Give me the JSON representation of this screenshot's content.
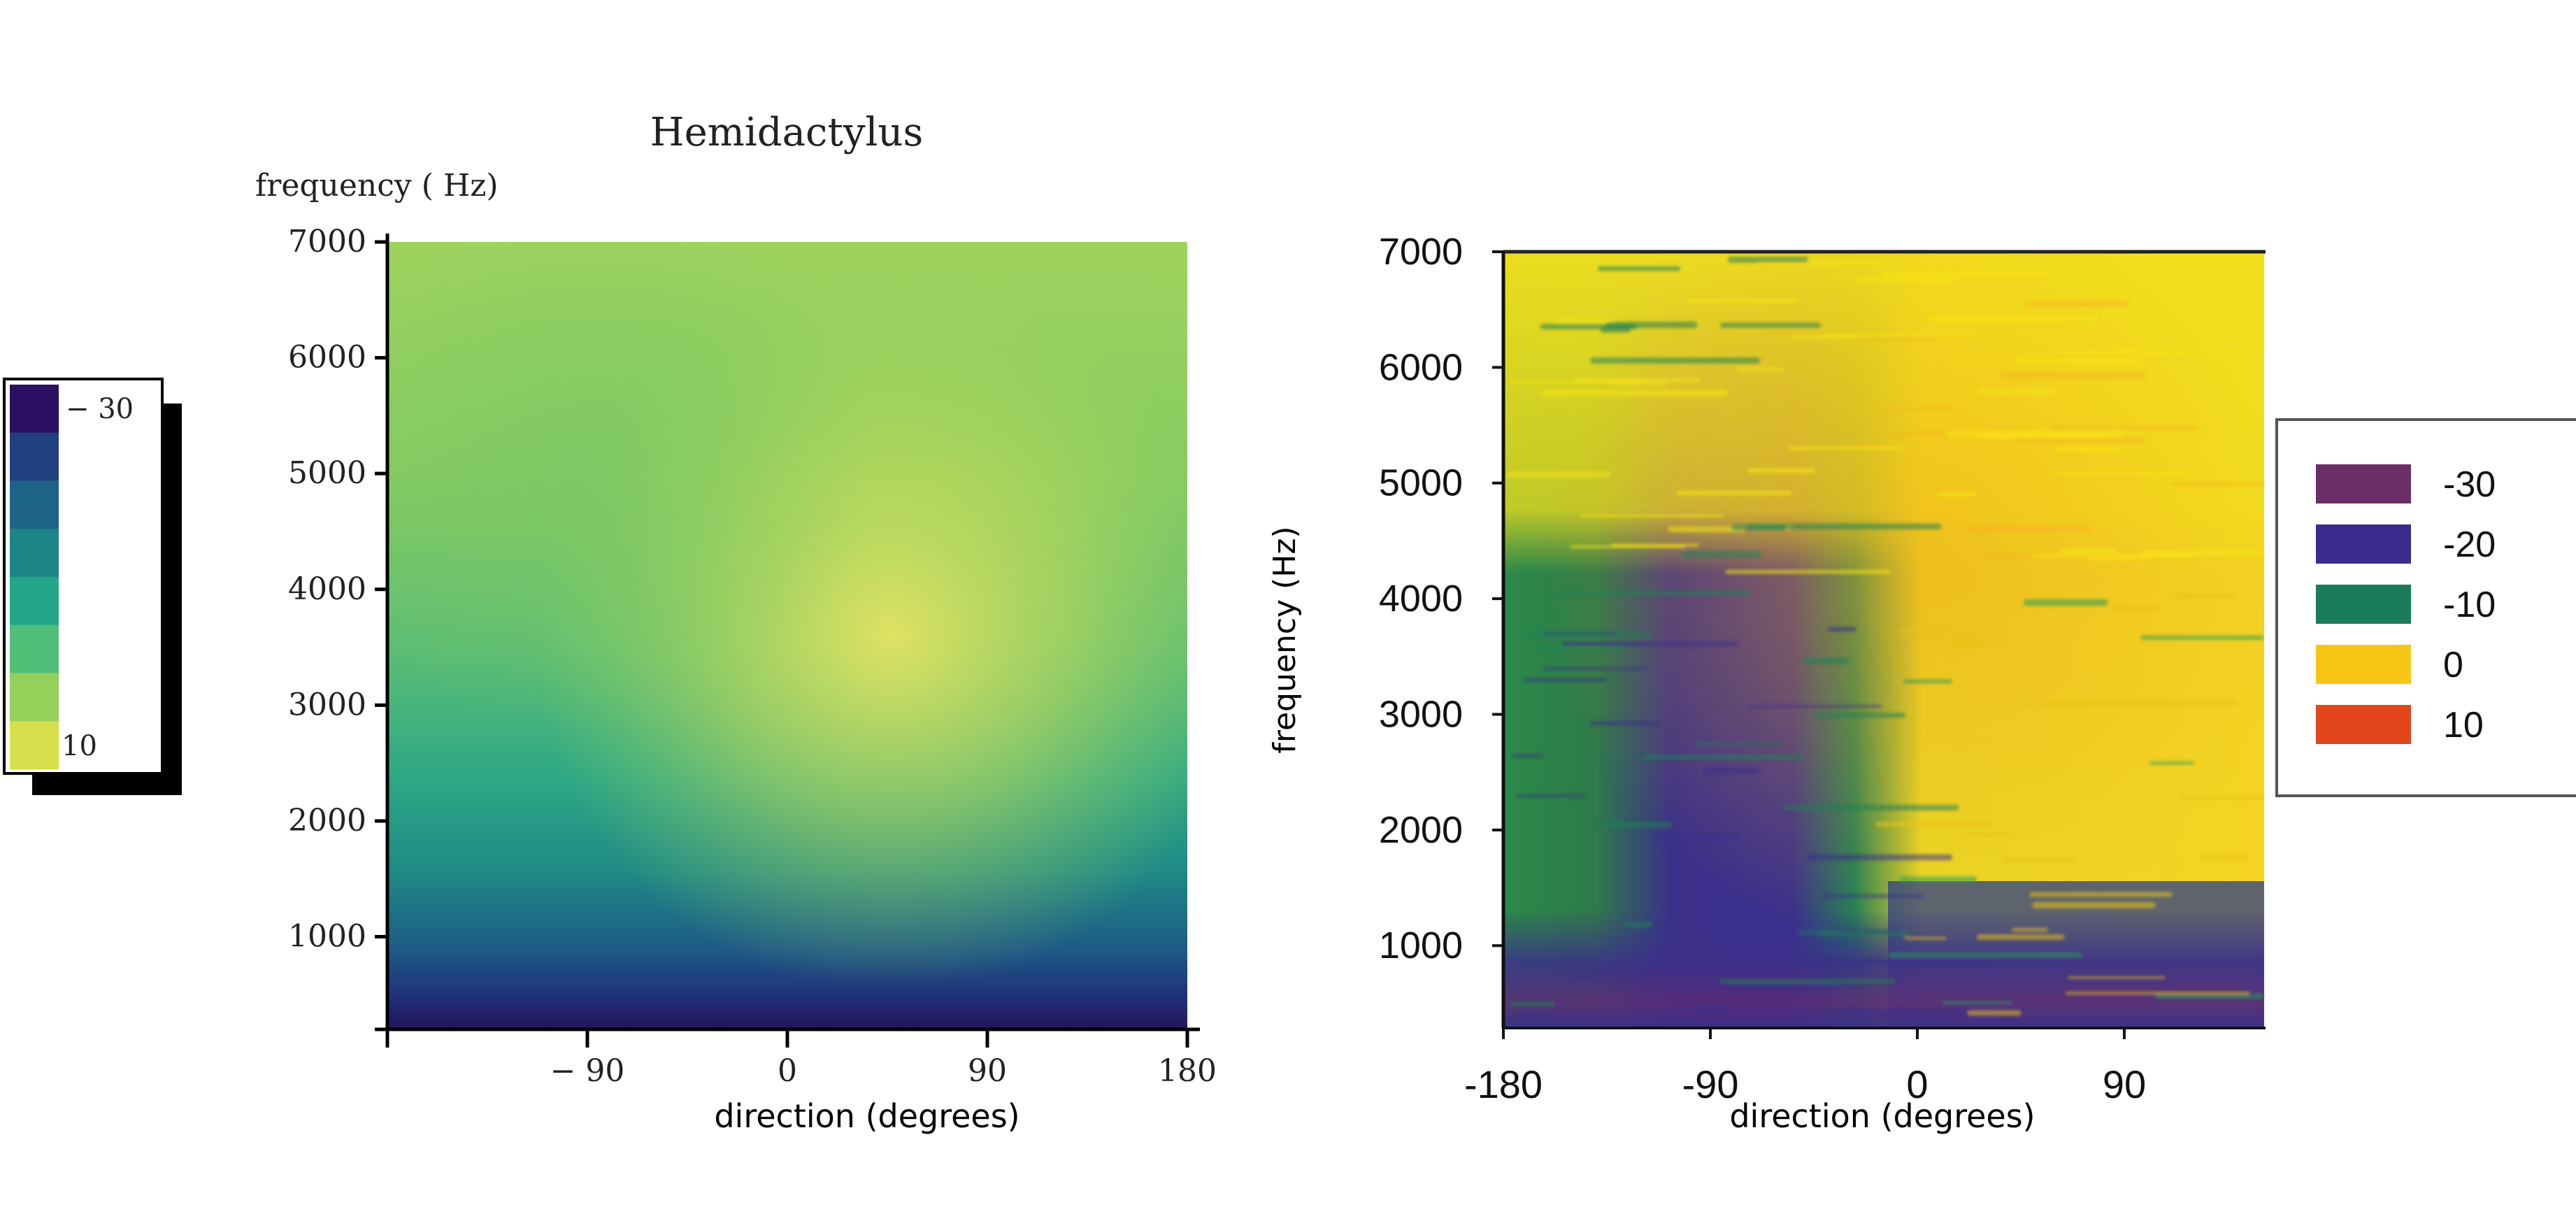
{
  "colors": {
    "viridis": [
      "#2c0f62",
      "#203f80",
      "#1d6388",
      "#1c8686",
      "#22a78a",
      "#51bf78",
      "#95d05b",
      "#d6e04c",
      "#e8e66a"
    ],
    "axis": "#000000",
    "legend_swatches": [
      "#6b2e68",
      "#3a2c8c",
      "#1a7c58",
      "#f7c617",
      "#e2451b"
    ]
  },
  "chart_data": [
    {
      "type": "heatmap",
      "title": "Hemidactylus",
      "ylabel": "frequency ( Hz)",
      "xlabel": "direction (degrees)",
      "x_ticks": [
        "− 90",
        "0",
        "90",
        "180"
      ],
      "x_tick_values": [
        -90,
        0,
        90,
        180
      ],
      "y_ticks": [
        "1000",
        "2000",
        "3000",
        "4000",
        "5000",
        "6000",
        "7000"
      ],
      "y_tick_values": [
        1000,
        2000,
        3000,
        4000,
        5000,
        6000,
        7000
      ],
      "xlim": [
        -180,
        180
      ],
      "ylim": [
        200,
        7000
      ],
      "colorbar": {
        "labels": [
          "− 30",
          "10"
        ],
        "range": [
          -30,
          10
        ],
        "levels": 8,
        "placement": "left"
      },
      "pattern": "low values (dark) below ~500 Hz, rising to high values above ~2500 Hz with a maximum near 0 to 90 degrees, 3500-5000 Hz"
    },
    {
      "type": "heatmap",
      "ylabel": "frequency (Hz)",
      "xlabel": "direction (degrees)",
      "x_ticks": [
        "-180",
        "-90",
        "0",
        "90"
      ],
      "x_tick_values": [
        -180,
        -90,
        0,
        90
      ],
      "y_ticks": [
        "1000",
        "2000",
        "3000",
        "4000",
        "5000",
        "6000",
        "7000"
      ],
      "y_tick_values": [
        1000,
        2000,
        3000,
        4000,
        5000,
        6000,
        7000
      ],
      "xlim": [
        -180,
        150
      ],
      "ylim": [
        300,
        7000
      ],
      "legend": {
        "placement": "right",
        "entries": [
          "-30",
          "-20",
          "-10",
          "0",
          "10"
        ]
      },
      "pattern": "values near -20 for -180 to -30 degrees below ~4200 Hz, near 0 elsewhere, -30 to -20 band below ~900 Hz"
    }
  ]
}
